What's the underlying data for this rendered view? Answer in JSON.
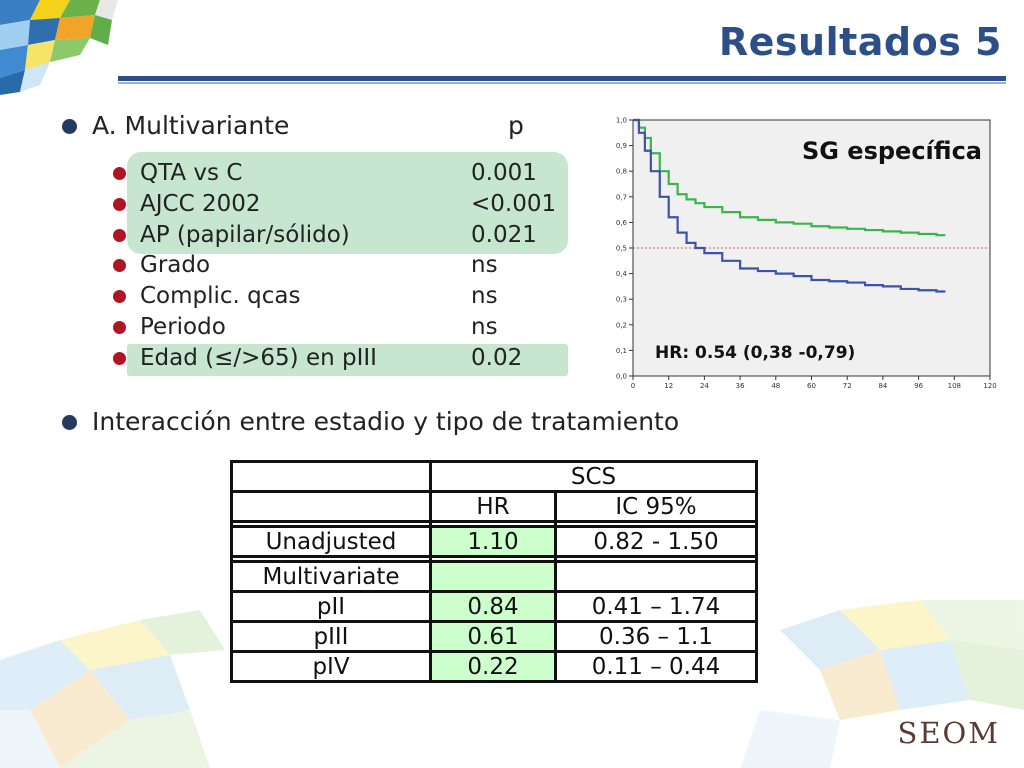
{
  "slide": {
    "title": "Resultados 5",
    "brand": "SEOM"
  },
  "section_a": {
    "heading": "A. Multivariante",
    "p_header": "p",
    "rows": [
      {
        "label": "QTA vs C",
        "p": "0.001"
      },
      {
        "label": "AJCC 2002",
        "p": "<0.001"
      },
      {
        "label": "AP (papilar/sólido)",
        "p": "0.021"
      },
      {
        "label": "Grado",
        "p": "ns"
      },
      {
        "label": "Complic. qcas",
        "p": "ns"
      },
      {
        "label": "Periodo",
        "p": "ns"
      },
      {
        "label": "Edad (≤/>65) en pIII",
        "p": "0.02"
      }
    ]
  },
  "section_b": {
    "heading": "Interacción entre estadio y tipo de tratamiento"
  },
  "chart_data": {
    "type": "line",
    "title": "SG específica",
    "annotation": "HR: 0.54 (0,38 -0,79)",
    "xlim": [
      0,
      120
    ],
    "ylim": [
      0,
      1.0
    ],
    "x_ticks": [
      "0",
      "12",
      "24",
      "36",
      "48",
      "60",
      "72",
      "84",
      "96",
      "108",
      "120"
    ],
    "y_ticks": [
      "0,0",
      "0,1",
      "0,2",
      "0,3",
      "0,4",
      "0,5",
      "0,6",
      "0,7",
      "0,8",
      "0,9",
      "1,0"
    ],
    "reference_line_y": 0.5,
    "series": [
      {
        "color": "#3ab54a",
        "x": [
          0,
          2,
          4,
          6,
          9,
          12,
          15,
          18,
          21,
          24,
          30,
          36,
          42,
          48,
          54,
          60,
          66,
          72,
          78,
          84,
          90,
          96,
          102,
          105
        ],
        "y": [
          1.0,
          0.97,
          0.93,
          0.87,
          0.8,
          0.75,
          0.71,
          0.69,
          0.675,
          0.66,
          0.64,
          0.62,
          0.61,
          0.6,
          0.595,
          0.585,
          0.58,
          0.575,
          0.57,
          0.565,
          0.56,
          0.555,
          0.55,
          0.55
        ]
      },
      {
        "color": "#3d52a8",
        "x": [
          0,
          2,
          4,
          6,
          9,
          12,
          15,
          18,
          21,
          24,
          30,
          36,
          42,
          48,
          54,
          60,
          66,
          72,
          78,
          84,
          90,
          96,
          102,
          105
        ],
        "y": [
          1.0,
          0.95,
          0.88,
          0.8,
          0.7,
          0.62,
          0.56,
          0.52,
          0.5,
          0.48,
          0.45,
          0.42,
          0.41,
          0.4,
          0.39,
          0.375,
          0.37,
          0.365,
          0.355,
          0.35,
          0.34,
          0.335,
          0.33,
          0.33
        ]
      }
    ],
    "series_colors": [
      "#3ab54a",
      "#3d52a8"
    ]
  },
  "table": {
    "group_header": "SCS",
    "col_hr": "HR",
    "col_ic": "IC 95%",
    "unadjusted": {
      "label": "Unadjusted",
      "hr": "1.10",
      "ic": "0.82 - 1.50"
    },
    "multivariate_label": "Multivariate",
    "rows": [
      {
        "label": "pII",
        "hr": "0.84",
        "ic": "0.41 – 1.74"
      },
      {
        "label": "pIII",
        "hr": "0.61",
        "ic": "0.36 – 1.1"
      },
      {
        "label": "pIV",
        "hr": "0.22",
        "ic": "0.11 – 0.44"
      }
    ]
  },
  "colors": {
    "title": "#2b4f86",
    "highlight": "#c6e6cf",
    "bullet_main": "#233a63",
    "bullet_sub": "#b01525",
    "table_highlight": "#ccffcc"
  }
}
